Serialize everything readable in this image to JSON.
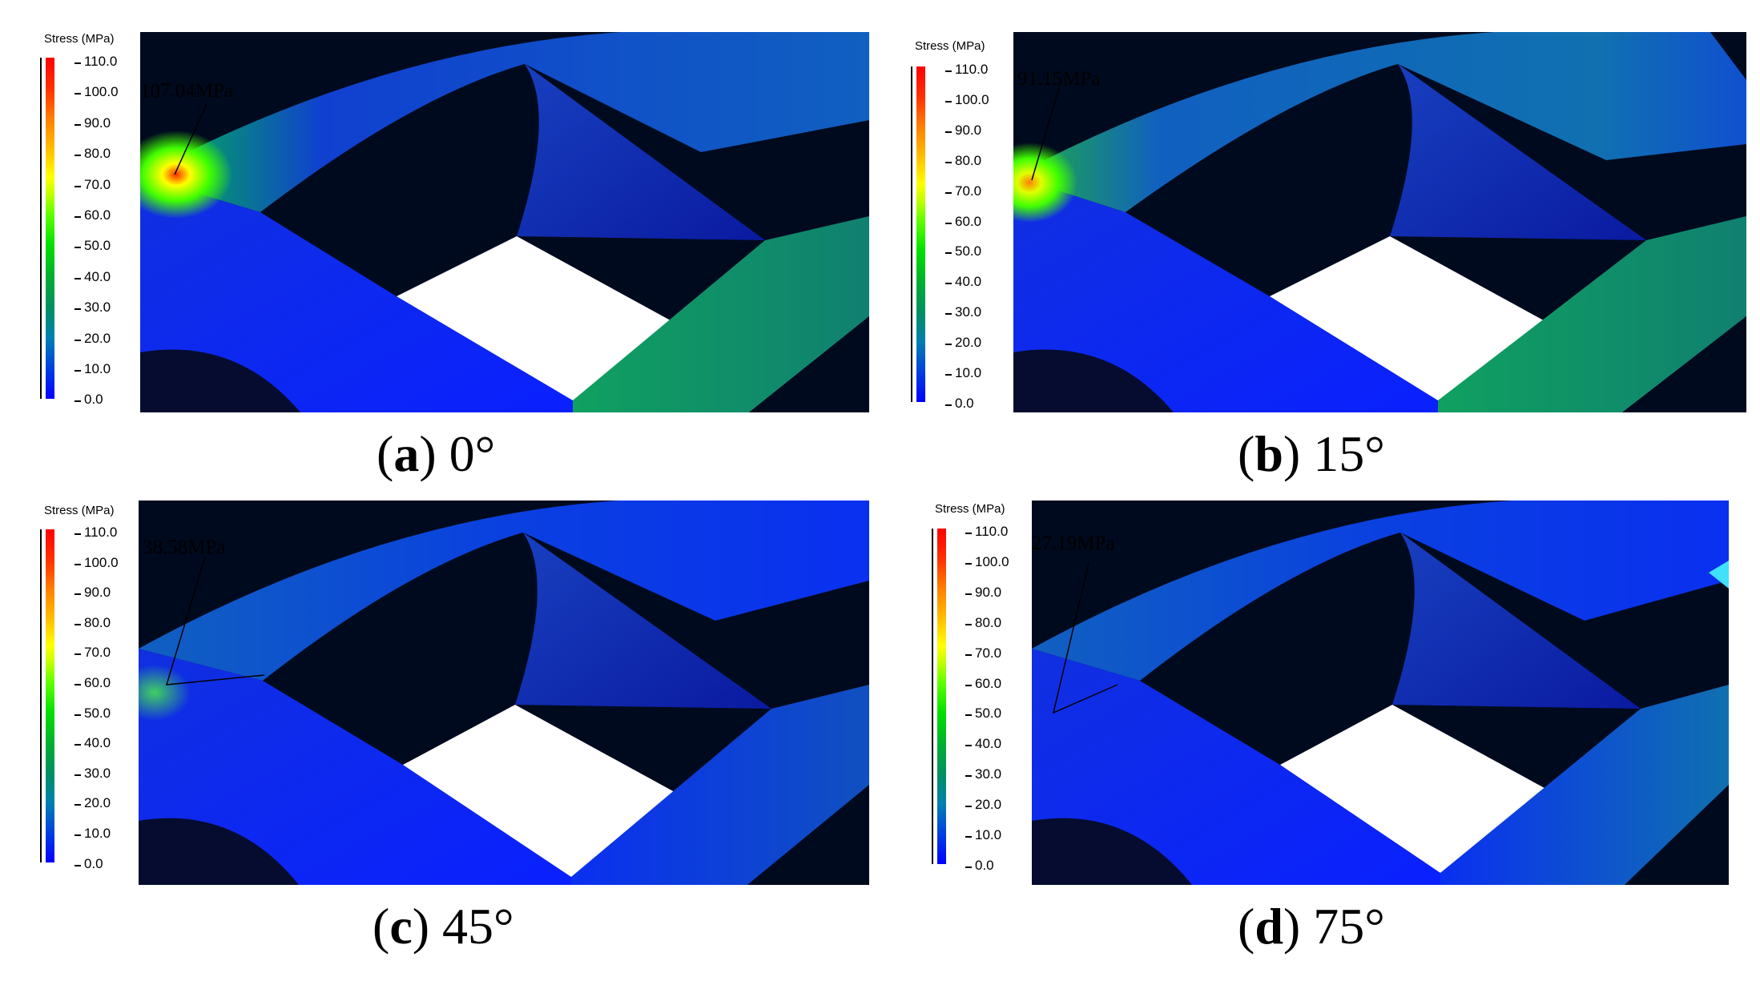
{
  "legend": {
    "title": "Stress (MPa)",
    "ticks": [
      "110.0",
      "100.0",
      "90.0",
      "80.0",
      "70.0",
      "60.0",
      "50.0",
      "40.0",
      "30.0",
      "20.0",
      "10.0",
      "0.0"
    ]
  },
  "panels": [
    {
      "letter": "a",
      "angle": "0°",
      "max_stress_label": "107.04MPa"
    },
    {
      "letter": "b",
      "angle": "15°",
      "max_stress_label": "91.15MPa"
    },
    {
      "letter": "c",
      "angle": "45°",
      "max_stress_label": "38.58MPa"
    },
    {
      "letter": "d",
      "angle": "75°",
      "max_stress_label": "27.19MPa"
    }
  ],
  "colors": {
    "background_dark": "#000a1e",
    "low_stress": "#0000ff",
    "mid_stress": "#00ff00",
    "high_stress": "#ff0000"
  }
}
